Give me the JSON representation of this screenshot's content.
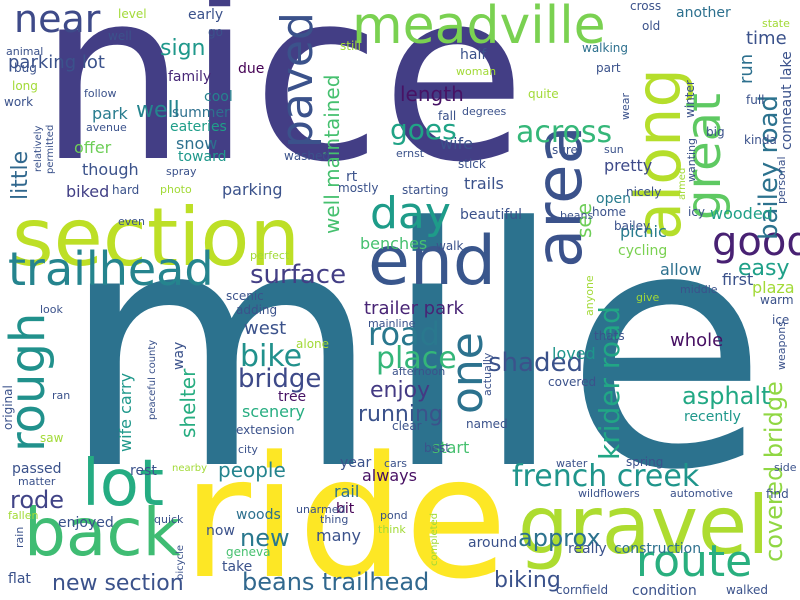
{
  "words": [
    {
      "text": "mile",
      "color": "#2c728e"
    },
    {
      "text": "nice",
      "color": "#433e85"
    },
    {
      "text": "ride",
      "color": "#fde725"
    },
    {
      "text": "section",
      "color": "#bddf26"
    },
    {
      "text": "gravel",
      "color": "#addc30"
    },
    {
      "text": "end",
      "color": "#39568c"
    },
    {
      "text": "area",
      "color": "#3b528b"
    },
    {
      "text": "along",
      "color": "#b5de2b"
    },
    {
      "text": "back",
      "color": "#3fbc73"
    },
    {
      "text": "lot",
      "color": "#25ac82"
    },
    {
      "text": "meadville",
      "color": "#7ad151"
    },
    {
      "text": "great",
      "color": "#5ec962"
    },
    {
      "text": "rough",
      "color": "#21918c"
    },
    {
      "text": "trailhead",
      "color": "#25848e"
    },
    {
      "text": "paved",
      "color": "#3b528b"
    },
    {
      "text": "one",
      "color": "#2c728e"
    },
    {
      "text": "route",
      "color": "#29af7f"
    },
    {
      "text": "good",
      "color": "#482173"
    },
    {
      "text": "day",
      "color": "#1e9c89"
    },
    {
      "text": "near",
      "color": "#3e4a89"
    },
    {
      "text": "french creek",
      "color": "#1f958b"
    },
    {
      "text": "krider road",
      "color": "#21a685"
    },
    {
      "text": "new section",
      "color": "#3b528b"
    },
    {
      "text": "beans trailhead",
      "color": "#31688e"
    },
    {
      "text": "bailey road",
      "color": "#2c728e"
    },
    {
      "text": "covered bridge",
      "color": "#90d743"
    },
    {
      "text": "road",
      "color": "#2a788e"
    },
    {
      "text": "place",
      "color": "#34b679"
    },
    {
      "text": "bike",
      "color": "#21918c"
    },
    {
      "text": "bridge",
      "color": "#3e4a89"
    },
    {
      "text": "shaded",
      "color": "#3b528b"
    },
    {
      "text": "surface",
      "color": "#433e85"
    },
    {
      "text": "across",
      "color": "#35b779"
    },
    {
      "text": "goes",
      "color": "#20a386"
    },
    {
      "text": "well maintained",
      "color": "#46c06f"
    },
    {
      "text": "little",
      "color": "#31688e"
    },
    {
      "text": "asphalt",
      "color": "#22a884"
    },
    {
      "text": "easy",
      "color": "#1fa088"
    },
    {
      "text": "approx",
      "color": "#2c728e"
    },
    {
      "text": "biking",
      "color": "#3b528b"
    },
    {
      "text": "new",
      "color": "#2a788e"
    },
    {
      "text": "rode",
      "color": "#414487"
    },
    {
      "text": "people",
      "color": "#25848e"
    },
    {
      "text": "running",
      "color": "#3b528b"
    },
    {
      "text": "enjoy",
      "color": "#443a83"
    },
    {
      "text": "length",
      "color": "#471365"
    },
    {
      "text": "trailer park",
      "color": "#482475"
    },
    {
      "text": "shelter",
      "color": "#27ad81"
    },
    {
      "text": "time",
      "color": "#3b528b"
    },
    {
      "text": "run",
      "color": "#2d708e"
    },
    {
      "text": "sign",
      "color": "#1f988b"
    },
    {
      "text": "well",
      "color": "#25848e"
    },
    {
      "text": "parking lot",
      "color": "#3b528b"
    },
    {
      "text": "conneaut lake",
      "color": "#3b528b"
    },
    {
      "text": "see",
      "color": "#6ece58"
    },
    {
      "text": "whole",
      "color": "#471063"
    },
    {
      "text": "loved",
      "color": "#1f958b"
    },
    {
      "text": "scenery",
      "color": "#27ad81"
    },
    {
      "text": "west",
      "color": "#3b528b"
    },
    {
      "text": "tree",
      "color": "#471365"
    },
    {
      "text": "wife carry",
      "color": "#1f988b"
    },
    {
      "text": "park",
      "color": "#287c8e"
    },
    {
      "text": "cool",
      "color": "#26828e"
    },
    {
      "text": "family",
      "color": "#482878"
    },
    {
      "text": "summer",
      "color": "#2d708e"
    },
    {
      "text": "eateries",
      "color": "#1f9e89"
    },
    {
      "text": "offer",
      "color": "#6ece58"
    },
    {
      "text": "snow",
      "color": "#2d708e"
    },
    {
      "text": "toward",
      "color": "#1f988b"
    },
    {
      "text": "though",
      "color": "#3b528b"
    },
    {
      "text": "biked",
      "color": "#424086"
    },
    {
      "text": "parking",
      "color": "#3b528b"
    },
    {
      "text": "wife",
      "color": "#3b528b"
    },
    {
      "text": "trails",
      "color": "#3b528b"
    },
    {
      "text": "benches",
      "color": "#46c06f"
    },
    {
      "text": "wooded",
      "color": "#1fa088"
    },
    {
      "text": "picnic",
      "color": "#287c8e"
    },
    {
      "text": "allow",
      "color": "#2d708e"
    },
    {
      "text": "first",
      "color": "#3b528b"
    },
    {
      "text": "plaza",
      "color": "#a2da37"
    },
    {
      "text": "cycling",
      "color": "#7ad151"
    },
    {
      "text": "open",
      "color": "#287c8e"
    },
    {
      "text": "pretty",
      "color": "#3e4a89"
    },
    {
      "text": "start",
      "color": "#46c06f"
    },
    {
      "text": "always",
      "color": "#471063"
    },
    {
      "text": "year",
      "color": "#3b528b"
    },
    {
      "text": "rail",
      "color": "#2d708e"
    },
    {
      "text": "bit",
      "color": "#440154"
    },
    {
      "text": "many",
      "color": "#3b528b"
    },
    {
      "text": "around",
      "color": "#3b528b"
    },
    {
      "text": "really",
      "color": "#3b528b"
    },
    {
      "text": "construction",
      "color": "#2d708e"
    },
    {
      "text": "condition",
      "color": "#3b528b"
    },
    {
      "text": "walked",
      "color": "#3b528b"
    },
    {
      "text": "cornfield",
      "color": "#3b528b"
    },
    {
      "text": "recently",
      "color": "#1f988b"
    },
    {
      "text": "enjoyed",
      "color": "#3b528b"
    },
    {
      "text": "passed",
      "color": "#3b528b"
    },
    {
      "text": "woods",
      "color": "#2d708e"
    },
    {
      "text": "rest",
      "color": "#3b528b"
    },
    {
      "text": "extension",
      "color": "#3b528b"
    },
    {
      "text": "way",
      "color": "#3b528b"
    },
    {
      "text": "adding",
      "color": "#3b528b"
    },
    {
      "text": "scenic",
      "color": "#3b528b"
    },
    {
      "text": "flat",
      "color": "#3b528b"
    },
    {
      "text": "take",
      "color": "#3b528b"
    },
    {
      "text": "now",
      "color": "#3b528b"
    },
    {
      "text": "geneva",
      "color": "#46c06f"
    },
    {
      "text": "half",
      "color": "#3b528b"
    },
    {
      "text": "due",
      "color": "#440154"
    },
    {
      "text": "well",
      "color": "#3b528b"
    },
    {
      "text": "early",
      "color": "#3b528b"
    },
    {
      "text": "go",
      "color": "#3b528b"
    },
    {
      "text": "level",
      "color": "#a2da37"
    },
    {
      "text": "cross",
      "color": "#3b528b"
    },
    {
      "text": "another",
      "color": "#2d708e"
    },
    {
      "text": "old",
      "color": "#3b528b"
    },
    {
      "text": "state",
      "color": "#a2da37"
    },
    {
      "text": "walking",
      "color": "#2d708e"
    },
    {
      "text": "part",
      "color": "#3b528b"
    },
    {
      "text": "quite",
      "color": "#a2da37"
    },
    {
      "text": "degrees",
      "color": "#3b528b"
    },
    {
      "text": "fall",
      "color": "#3b528b"
    },
    {
      "text": "sure",
      "color": "#3b528b"
    },
    {
      "text": "sun",
      "color": "#3b528b"
    },
    {
      "text": "winter",
      "color": "#3b528b"
    },
    {
      "text": "wear",
      "color": "#3b528b"
    },
    {
      "text": "full",
      "color": "#3b528b"
    },
    {
      "text": "kinda",
      "color": "#3b528b"
    },
    {
      "text": "big",
      "color": "#3b528b"
    },
    {
      "text": "personal",
      "color": "#3b528b"
    },
    {
      "text": "warm",
      "color": "#3b528b"
    },
    {
      "text": "ice",
      "color": "#3b528b"
    },
    {
      "text": "weapons",
      "color": "#3b528b"
    },
    {
      "text": "wanting",
      "color": "#3b528b"
    },
    {
      "text": "nicely",
      "color": "#3b528b"
    },
    {
      "text": "icy",
      "color": "#3b528b"
    },
    {
      "text": "home",
      "color": "#3b528b"
    },
    {
      "text": "bailey",
      "color": "#3b528b"
    },
    {
      "text": "middle",
      "color": "#3b528b"
    },
    {
      "text": "give",
      "color": "#a2da37"
    },
    {
      "text": "anyone",
      "color": "#a2da37"
    },
    {
      "text": "thats",
      "color": "#3b528b"
    },
    {
      "text": "armed",
      "color": "#a2da37"
    },
    {
      "text": "actually",
      "color": "#3b528b"
    },
    {
      "text": "named",
      "color": "#3b528b"
    },
    {
      "text": "covered",
      "color": "#3b528b"
    },
    {
      "text": "best",
      "color": "#3b528b"
    },
    {
      "text": "clear",
      "color": "#3b528b"
    },
    {
      "text": "afternoon",
      "color": "#3b528b"
    },
    {
      "text": "mainline",
      "color": "#3b528b"
    },
    {
      "text": "rt",
      "color": "#3b528b"
    },
    {
      "text": "alone",
      "color": "#a2da37"
    },
    {
      "text": "mostly",
      "color": "#3b528b"
    },
    {
      "text": "starting",
      "color": "#3b528b"
    },
    {
      "text": "stick",
      "color": "#3b528b"
    },
    {
      "text": "beans",
      "color": "#3b528b"
    },
    {
      "text": "beautiful",
      "color": "#3b528b"
    },
    {
      "text": "walk",
      "color": "#3b528b"
    },
    {
      "text": "perfect",
      "color": "#a2da37"
    },
    {
      "text": "still",
      "color": "#a2da37"
    },
    {
      "text": "woman",
      "color": "#a2da37"
    },
    {
      "text": "ernst",
      "color": "#3b528b"
    },
    {
      "text": "washed",
      "color": "#3b528b"
    },
    {
      "text": "photo",
      "color": "#a2da37"
    },
    {
      "text": "spray",
      "color": "#3b528b"
    },
    {
      "text": "even",
      "color": "#3b528b"
    },
    {
      "text": "hard",
      "color": "#3b528b"
    },
    {
      "text": "relatively",
      "color": "#3b528b"
    },
    {
      "text": "permitted",
      "color": "#3b528b"
    },
    {
      "text": "work",
      "color": "#3b528b"
    },
    {
      "text": "long",
      "color": "#a2da37"
    },
    {
      "text": "bug",
      "color": "#3b528b"
    },
    {
      "text": "animal",
      "color": "#3b528b"
    },
    {
      "text": "follow",
      "color": "#3b528b"
    },
    {
      "text": "avenue",
      "color": "#3b528b"
    },
    {
      "text": "look",
      "color": "#3b528b"
    },
    {
      "text": "peaceful county",
      "color": "#3b528b"
    },
    {
      "text": "original",
      "color": "#3b528b"
    },
    {
      "text": "ran",
      "color": "#3b528b"
    },
    {
      "text": "saw",
      "color": "#a2da37"
    },
    {
      "text": "city",
      "color": "#3b528b"
    },
    {
      "text": "matter",
      "color": "#3b528b"
    },
    {
      "text": "fallen",
      "color": "#a2da37"
    },
    {
      "text": "rain",
      "color": "#3b528b"
    },
    {
      "text": "quick",
      "color": "#3b528b"
    },
    {
      "text": "bicycle",
      "color": "#3b528b"
    },
    {
      "text": "unarmed",
      "color": "#3b528b"
    },
    {
      "text": "thing",
      "color": "#3b528b"
    },
    {
      "text": "nearby",
      "color": "#a2da37"
    },
    {
      "text": "cars",
      "color": "#3b528b"
    },
    {
      "text": "pond",
      "color": "#3b528b"
    },
    {
      "text": "think",
      "color": "#a2da37"
    },
    {
      "text": "completed",
      "color": "#a2da37"
    },
    {
      "text": "water",
      "color": "#3b528b"
    },
    {
      "text": "spring",
      "color": "#3b528b"
    },
    {
      "text": "side",
      "color": "#3b528b"
    },
    {
      "text": "wildflowers",
      "color": "#3b528b"
    },
    {
      "text": "automotive",
      "color": "#3b528b"
    },
    {
      "text": "find",
      "color": "#3b528b"
    }
  ]
}
